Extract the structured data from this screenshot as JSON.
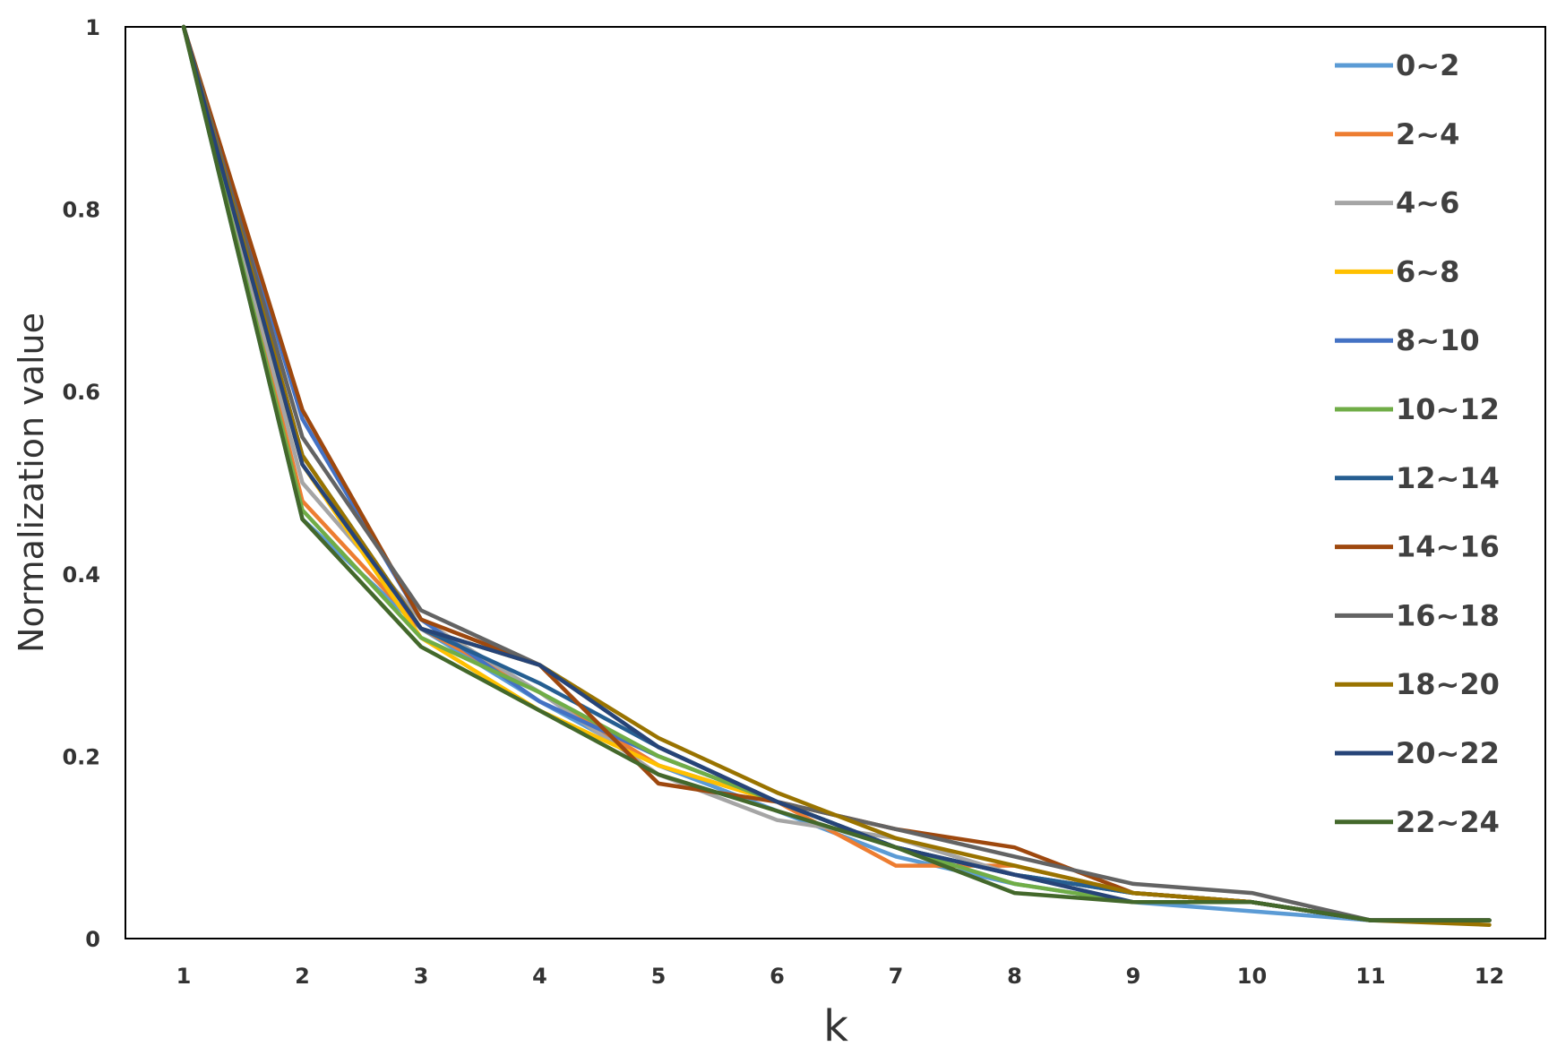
{
  "chart_data": {
    "type": "line",
    "title": "",
    "xlabel": "k",
    "ylabel": "Normalization value",
    "x": [
      1,
      2,
      3,
      4,
      5,
      6,
      7,
      8,
      9,
      10,
      11,
      12
    ],
    "xticks": [
      "1",
      "2",
      "3",
      "4",
      "5",
      "6",
      "7",
      "8",
      "9",
      "10",
      "11",
      "12"
    ],
    "ylim": [
      0,
      1
    ],
    "yticks": [
      "0",
      "0.2",
      "0.4",
      "0.6",
      "0.8",
      "1"
    ],
    "grid": false,
    "legend_position": "right",
    "series": [
      {
        "name": "0~2",
        "color": "#5B9BD5",
        "values": [
          1,
          0.46,
          0.34,
          0.26,
          0.19,
          0.14,
          0.09,
          0.06,
          0.04,
          0.03,
          0.02,
          0.02
        ]
      },
      {
        "name": "2~4",
        "color": "#ED7D31",
        "values": [
          1,
          0.48,
          0.34,
          0.27,
          0.19,
          0.15,
          0.08,
          0.08,
          0.05,
          0.04,
          0.02,
          0.02
        ]
      },
      {
        "name": "4~6",
        "color": "#A5A5A5",
        "values": [
          1,
          0.5,
          0.35,
          0.27,
          0.18,
          0.13,
          0.11,
          0.07,
          0.05,
          0.04,
          0.02,
          0.02
        ]
      },
      {
        "name": "6~8",
        "color": "#FFC000",
        "values": [
          1,
          0.52,
          0.33,
          0.25,
          0.19,
          0.15,
          0.1,
          0.07,
          0.05,
          0.04,
          0.02,
          0.02
        ]
      },
      {
        "name": "8~10",
        "color": "#4472C4",
        "values": [
          1,
          0.57,
          0.35,
          0.26,
          0.2,
          0.15,
          0.1,
          0.07,
          0.05,
          0.04,
          0.02,
          0.02
        ]
      },
      {
        "name": "10~12",
        "color": "#70AD47",
        "values": [
          1,
          0.47,
          0.33,
          0.27,
          0.2,
          0.15,
          0.1,
          0.06,
          0.04,
          0.04,
          0.02,
          0.02
        ]
      },
      {
        "name": "12~14",
        "color": "#255E91",
        "values": [
          1,
          0.53,
          0.34,
          0.28,
          0.21,
          0.15,
          0.1,
          0.07,
          0.05,
          0.04,
          0.02,
          0.02
        ]
      },
      {
        "name": "14~16",
        "color": "#9E480E",
        "values": [
          1,
          0.58,
          0.35,
          0.3,
          0.17,
          0.15,
          0.12,
          0.1,
          0.05,
          0.04,
          0.02,
          0.02
        ]
      },
      {
        "name": "16~18",
        "color": "#636363",
        "values": [
          1,
          0.55,
          0.36,
          0.3,
          0.21,
          0.15,
          0.12,
          0.09,
          0.06,
          0.05,
          0.02,
          0.02
        ]
      },
      {
        "name": "18~20",
        "color": "#997300",
        "values": [
          1,
          0.53,
          0.34,
          0.3,
          0.22,
          0.16,
          0.11,
          0.08,
          0.05,
          0.04,
          0.02,
          0.015
        ]
      },
      {
        "name": "20~22",
        "color": "#264478",
        "values": [
          1,
          0.52,
          0.34,
          0.3,
          0.21,
          0.15,
          0.1,
          0.07,
          0.04,
          0.04,
          0.02,
          0.02
        ]
      },
      {
        "name": "22~24",
        "color": "#43682B",
        "values": [
          1,
          0.46,
          0.32,
          0.25,
          0.18,
          0.14,
          0.1,
          0.05,
          0.04,
          0.04,
          0.02,
          0.02
        ]
      }
    ]
  }
}
